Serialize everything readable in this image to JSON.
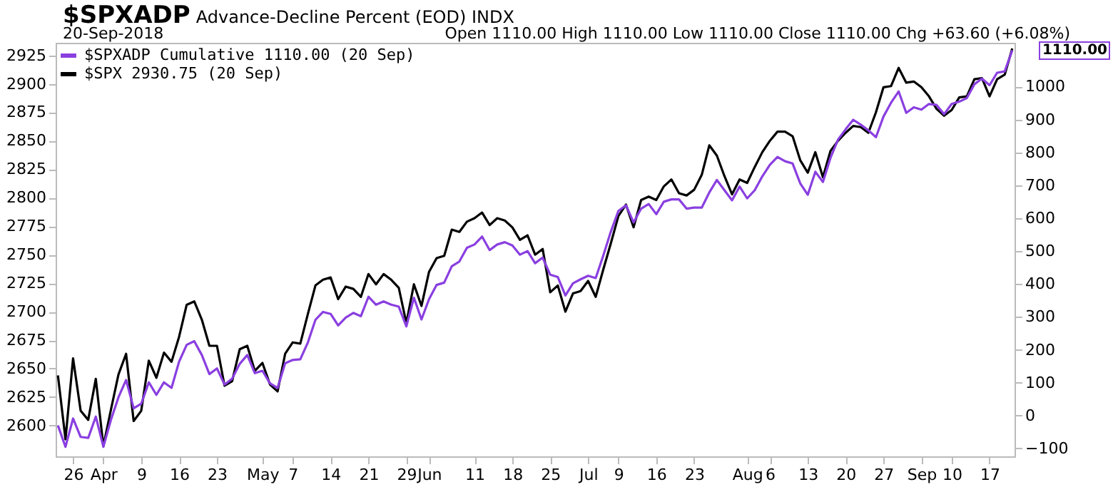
{
  "chart_data": {
    "type": "line",
    "title": "$SPXADP",
    "subtitle": "Advance-Decline Percent (EOD) INDX",
    "annotations": [
      "20-Sep-2018",
      "Open 1110.00 High 1110.00 Low 1110.00 Close 1110.00 Chg +63.60 (+6.08%)",
      "1110.00"
    ],
    "categories": [
      null,
      null,
      "26",
      null,
      null,
      null,
      "Apr",
      null,
      null,
      null,
      null,
      "9",
      null,
      null,
      null,
      null,
      "16",
      null,
      null,
      null,
      null,
      "23",
      null,
      null,
      null,
      null,
      null,
      "May",
      null,
      null,
      null,
      "7",
      null,
      null,
      null,
      null,
      "14",
      null,
      null,
      null,
      null,
      "21",
      null,
      null,
      null,
      null,
      "29",
      null,
      null,
      "Jun",
      null,
      null,
      null,
      null,
      null,
      "11",
      null,
      null,
      null,
      null,
      "18",
      null,
      null,
      null,
      null,
      "25",
      null,
      null,
      null,
      null,
      "Jul",
      null,
      null,
      null,
      "9",
      null,
      null,
      null,
      null,
      "16",
      null,
      null,
      null,
      null,
      "23",
      null,
      null,
      null,
      null,
      null,
      null,
      "Aug",
      null,
      null,
      "6",
      null,
      null,
      null,
      null,
      "13",
      null,
      null,
      null,
      null,
      "20",
      null,
      null,
      null,
      null,
      "27",
      null,
      null,
      null,
      null,
      "Sep",
      null,
      null,
      null,
      "10",
      null,
      null,
      null,
      null,
      "17",
      null,
      null,
      null
    ],
    "series": [
      {
        "name": "$SPXADP Cumulative 1110.00 (20 Sep)",
        "color": "#8a3fe0",
        "axis": "y2",
        "values": [
          -30,
          -95,
          -9,
          -65,
          -68,
          -3,
          -95,
          -13,
          56,
          108,
          22,
          36,
          101,
          63,
          101,
          84,
          164,
          215,
          226,
          184,
          126,
          143,
          94,
          112,
          157,
          184,
          129,
          136,
          98,
          84,
          159,
          169,
          171,
          222,
          291,
          315,
          309,
          274,
          298,
          312,
          302,
          361,
          337,
          347,
          337,
          331,
          271,
          358,
          292,
          354,
          397,
          404,
          454,
          468,
          510,
          520,
          544,
          503,
          520,
          527,
          517,
          489,
          500,
          463,
          480,
          428,
          421,
          365,
          402,
          414,
          425,
          418,
          486,
          559,
          622,
          639,
          587,
          629,
          643,
          612,
          650,
          657,
          657,
          629,
          632,
          632,
          678,
          716,
          685,
          654,
          696,
          660,
          685,
          727,
          762,
          786,
          773,
          766,
          706,
          671,
          741,
          710,
          783,
          839,
          870,
          899,
          884,
          867,
          846,
          909,
          951,
          985,
          920,
          937,
          930,
          947,
          944,
          916,
          947,
          954,
          965,
          1007,
          1024,
          1004,
          1042,
          1046,
          1110
        ]
      },
      {
        "name": "$SPX 2930.75 (20 Sep)",
        "color": "#000000",
        "values": [
          2644,
          2588,
          2659,
          2613,
          2605,
          2641,
          2582,
          2614,
          2645,
          2663,
          2604,
          2613,
          2657,
          2642,
          2664,
          2656,
          2678,
          2706,
          2709,
          2693,
          2670,
          2670,
          2635,
          2639,
          2667,
          2670,
          2648,
          2655,
          2636,
          2630,
          2663,
          2673,
          2672,
          2698,
          2723,
          2728,
          2730,
          2711,
          2722,
          2720,
          2713,
          2733,
          2724,
          2733,
          2728,
          2721,
          2690,
          2724,
          2705,
          2735,
          2747,
          2749,
          2772,
          2770,
          2779,
          2782,
          2787,
          2776,
          2782,
          2780,
          2774,
          2763,
          2767,
          2750,
          2755,
          2717,
          2723,
          2700,
          2716,
          2718,
          2727,
          2713,
          2737,
          2760,
          2784,
          2794,
          2774,
          2798,
          2801,
          2798,
          2810,
          2816,
          2804,
          2802,
          2807,
          2820,
          2846,
          2837,
          2819,
          2803,
          2816,
          2813,
          2827,
          2840,
          2850,
          2858,
          2858,
          2854,
          2833,
          2822,
          2840,
          2818,
          2841,
          2850,
          2857,
          2863,
          2862,
          2857,
          2875,
          2897,
          2898,
          2914,
          2901,
          2902,
          2897,
          2889,
          2878,
          2872,
          2877,
          2888,
          2889,
          2904,
          2905,
          2889,
          2904,
          2908,
          2931
        ]
      }
    ],
    "ylim": [
      2573,
      2936
    ],
    "yticks": [
      2600,
      2625,
      2650,
      2675,
      2700,
      2725,
      2750,
      2775,
      2800,
      2825,
      2850,
      2875,
      2900,
      2925
    ],
    "y2lim": [
      -124,
      1133
    ],
    "y2ticks": [
      -100,
      0,
      100,
      200,
      300,
      400,
      500,
      600,
      700,
      800,
      900,
      1000
    ],
    "legend": "top left"
  }
}
